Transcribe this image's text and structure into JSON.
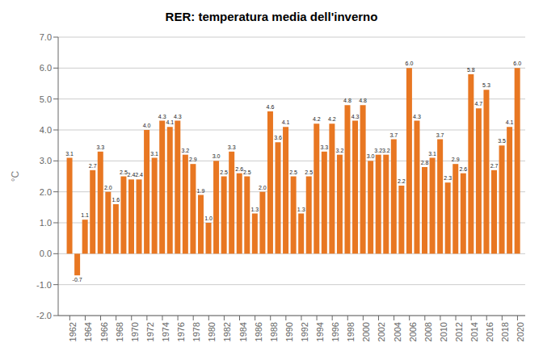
{
  "chart_data": {
    "type": "bar",
    "title": "RER: temperatura media dell'inverno",
    "ylabel": "°C",
    "x": [
      1962,
      1963,
      1964,
      1965,
      1966,
      1967,
      1968,
      1969,
      1970,
      1971,
      1972,
      1973,
      1974,
      1975,
      1976,
      1977,
      1978,
      1979,
      1980,
      1981,
      1982,
      1983,
      1984,
      1985,
      1986,
      1987,
      1988,
      1989,
      1990,
      1991,
      1992,
      1993,
      1994,
      1995,
      1996,
      1997,
      1998,
      1999,
      2000,
      2001,
      2002,
      2003,
      2004,
      2005,
      2006,
      2007,
      2008,
      2009,
      2010,
      2011,
      2012,
      2013,
      2014,
      2015,
      2016,
      2017,
      2018,
      2019,
      2020
    ],
    "values": [
      3.1,
      -0.7,
      1.1,
      2.7,
      3.3,
      2.0,
      1.6,
      2.5,
      2.4,
      2.4,
      4.0,
      3.1,
      4.3,
      4.1,
      4.3,
      3.2,
      2.9,
      1.9,
      1.0,
      3.0,
      2.5,
      3.3,
      2.6,
      2.5,
      1.3,
      2.0,
      4.6,
      3.6,
      4.1,
      2.5,
      1.3,
      2.5,
      4.2,
      3.3,
      4.2,
      3.2,
      4.8,
      4.3,
      4.8,
      3.0,
      3.2,
      3.2,
      3.7,
      2.2,
      6.0,
      4.3,
      2.8,
      3.1,
      3.7,
      2.3,
      2.9,
      2.6,
      5.8,
      4.7,
      5.3,
      2.7,
      3.5,
      4.1,
      6.0
    ],
    "value_labels": [
      "3.1",
      "-0.7",
      "1.1",
      "2.7",
      "3.3",
      "2.0",
      "1.6",
      "2.5",
      "2.4",
      "2.4",
      "4.0",
      "3.1",
      "4.3",
      "4.1",
      "4.3",
      "3.2",
      "2.9",
      "1.9",
      "1.0",
      "3.0",
      "2.5",
      "3.3",
      "2.6",
      "2.5",
      "1.3",
      "2.0",
      "4.6",
      "3.6",
      "4.1",
      "2.5",
      "1.3",
      "2.5",
      "4.2",
      "3.3",
      "4.2",
      "3.2",
      "4.8",
      "4.3",
      "4.8",
      "3.0",
      "3.2",
      "3.2",
      "3.7",
      "2.2",
      "6.0",
      "4.3",
      "2.8",
      "3.1",
      "3.7",
      "2.3",
      "2.9",
      "2.6",
      "5.8",
      "4.7",
      "5.3",
      "2.7",
      "3.5",
      "4.1",
      "6.0"
    ],
    "color": "#E87722",
    "xlim": [
      1960.5,
      2021
    ],
    "xticks": [
      1962,
      1964,
      1966,
      1968,
      1970,
      1972,
      1974,
      1976,
      1978,
      1980,
      1982,
      1984,
      1986,
      1988,
      1990,
      1992,
      1994,
      1996,
      1998,
      2000,
      2002,
      2004,
      2006,
      2008,
      2010,
      2012,
      2014,
      2016,
      2018,
      2020
    ],
    "ylim": [
      -2.0,
      7.0
    ],
    "yticks": [
      {
        "value": -2.0,
        "label": "-2.0"
      },
      {
        "value": -1.0,
        "label": "-1.0"
      },
      {
        "value": 0.0,
        "label": "0.0"
      },
      {
        "value": 1.0,
        "label": "1.0"
      },
      {
        "value": 2.0,
        "label": "2.0"
      },
      {
        "value": 3.0,
        "label": "3.0"
      },
      {
        "value": 4.0,
        "label": "4.0"
      },
      {
        "value": 5.0,
        "label": "5.0"
      },
      {
        "value": 6.0,
        "label": "6.0"
      },
      {
        "value": 7.0,
        "label": "7.0"
      }
    ],
    "grid": true,
    "data_labels": true
  }
}
